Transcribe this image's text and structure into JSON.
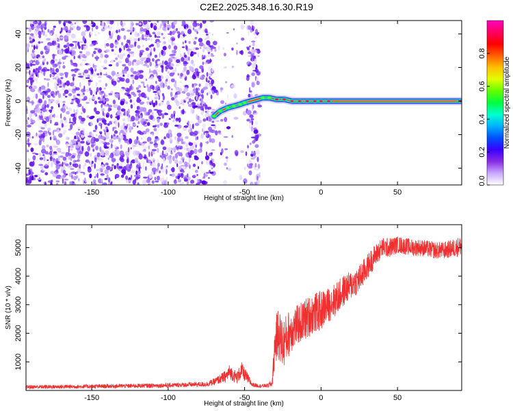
{
  "figure": {
    "title": "C2E2.2025.348.16.30.R19"
  },
  "chart_data": [
    {
      "type": "heatmap",
      "title": "C2E2.2025.348.16.30.R19",
      "xlabel": "Height of straight line (km)",
      "ylabel": "Frequency (Hz)",
      "xlim": [
        -193,
        92
      ],
      "ylim": [
        -50,
        48
      ],
      "xticks": [
        -150,
        -100,
        -50,
        0,
        50
      ],
      "yticks": [
        -40,
        -20,
        0,
        20,
        40
      ],
      "colorbar": {
        "label": "Normalized spectral amplitude",
        "range": [
          0,
          1
        ],
        "ticks": [
          "0.0",
          "0.2",
          "0.4",
          "0.6",
          "0.8"
        ],
        "colormap": [
          "#ffffff",
          "#c8a8ff",
          "#8a2be2",
          "#3a00ff",
          "#0050ff",
          "#00b0ff",
          "#00ffd0",
          "#00ff40",
          "#60ff00",
          "#e0ff00",
          "#ffc000",
          "#ff6000",
          "#ff0000",
          "#ff0060",
          "#ff00c0"
        ]
      },
      "noise_region": {
        "x": [
          -193,
          -40
        ],
        "y": [
          -50,
          48
        ],
        "typical_amplitude": 0.1
      },
      "gaps": [
        [
          -70,
          -63
        ],
        [
          -62,
          -48
        ]
      ],
      "ridge": [
        {
          "x": -70,
          "y": -9,
          "amplitude": 0.45
        },
        {
          "x": -66,
          "y": -6,
          "amplitude": 0.45
        },
        {
          "x": -61,
          "y": -4,
          "amplitude": 0.5
        },
        {
          "x": -57,
          "y": -3,
          "amplitude": 0.5
        },
        {
          "x": -53,
          "y": -2,
          "amplitude": 0.5
        },
        {
          "x": -50,
          "y": -1,
          "amplitude": 0.45
        },
        {
          "x": -38,
          "y": 2,
          "amplitude": 0.55
        },
        {
          "x": -34,
          "y": 2,
          "amplitude": 0.7
        },
        {
          "x": -29,
          "y": 1,
          "amplitude": 0.8
        },
        {
          "x": -24,
          "y": 1,
          "amplitude": 0.8
        },
        {
          "x": -19,
          "y": 0,
          "amplitude": 0.85
        },
        {
          "x": -14,
          "y": 0,
          "amplitude": 0.85
        },
        {
          "x": -9,
          "y": 0,
          "amplitude": 0.9
        },
        {
          "x": -4,
          "y": 0,
          "amplitude": 0.9
        },
        {
          "x": 0,
          "y": 0,
          "amplitude": 0.95
        },
        {
          "x": 5,
          "y": 0,
          "amplitude": 0.95
        },
        {
          "x": 91,
          "y": 0,
          "amplitude": 0.95
        }
      ],
      "colors": {
        "noise": "#7b2ff7",
        "band_outer": "#2f4dff",
        "band_mid": "#00d8b0",
        "band_core": "#ff1050"
      }
    },
    {
      "type": "line",
      "xlabel": "Height of straight line (km)",
      "ylabel": "SNR (10 * v/v)",
      "xlim": [
        -193,
        92
      ],
      "ylim": [
        0,
        5800
      ],
      "xticks": [
        -150,
        -100,
        -50,
        0,
        50
      ],
      "yticks": [
        1000,
        2000,
        3000,
        4000,
        5000
      ],
      "line_color": "#f03030",
      "envelope": {
        "x": [
          -193,
          -150,
          -100,
          -75,
          -70,
          -62,
          -60,
          -55,
          -52,
          -48,
          -45,
          -40,
          -35,
          -32,
          -30,
          -28,
          -25,
          -20,
          -15,
          -10,
          -5,
          0,
          5,
          10,
          15,
          20,
          25,
          30,
          35,
          40,
          45,
          50,
          55,
          60,
          65,
          70,
          75,
          80,
          85,
          91
        ],
        "y": [
          120,
          140,
          180,
          220,
          300,
          500,
          650,
          450,
          700,
          420,
          200,
          160,
          170,
          250,
          1700,
          2000,
          1600,
          2100,
          2300,
          2500,
          2700,
          2800,
          3000,
          3200,
          3500,
          3700,
          3900,
          4300,
          4700,
          5000,
          5000,
          5100,
          5050,
          5000,
          5000,
          4950,
          4900,
          4900,
          4950,
          5050
        ],
        "spread": [
          70,
          70,
          80,
          90,
          120,
          220,
          250,
          220,
          300,
          200,
          80,
          60,
          70,
          150,
          800,
          900,
          900,
          800,
          700,
          750,
          700,
          700,
          600,
          600,
          550,
          500,
          500,
          450,
          400,
          350,
          350,
          300,
          300,
          300,
          300,
          300,
          300,
          300,
          320,
          350
        ]
      }
    }
  ]
}
